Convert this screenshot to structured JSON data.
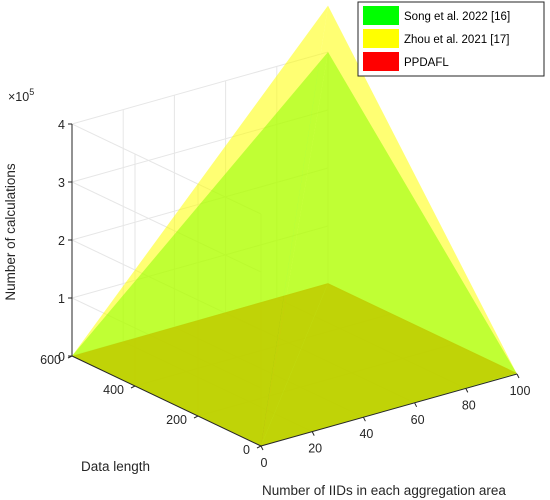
{
  "chart_data": {
    "type": "surface3d",
    "xlabel": "Number of IIDs in each aggregation area",
    "ylabel": "Data length",
    "zlabel": "Number of calculations",
    "z_exponent_base": "×10",
    "z_exponent_power": "5",
    "x_ticks": [
      "0",
      "20",
      "40",
      "60",
      "80",
      "100"
    ],
    "y_ticks": [
      "0",
      "200",
      "400",
      "600"
    ],
    "z_ticks": [
      "0",
      "1",
      "2",
      "3",
      "4"
    ],
    "xlim": [
      0,
      100
    ],
    "ylim": [
      0,
      600
    ],
    "zlim": [
      0,
      400000
    ],
    "grid": true,
    "legend_position": "top-right",
    "series": [
      {
        "name": "Song et al. 2022 [16]",
        "color": "#00ff00",
        "x": [
          0,
          100
        ],
        "y": [
          0,
          600
        ],
        "z": [
          [
            0,
            0
          ],
          [
            0,
            400000
          ]
        ]
      },
      {
        "name": "Zhou et al. 2021 [17]",
        "color": "#ffff00",
        "x": [
          0,
          100
        ],
        "y": [
          0,
          600
        ],
        "z": [
          [
            0,
            0
          ],
          [
            0,
            480000
          ]
        ]
      },
      {
        "name": "PPDAFL",
        "color": "#ff0000",
        "x": [
          0,
          100
        ],
        "y": [
          0,
          600
        ],
        "z": [
          [
            0,
            1500
          ],
          [
            0,
            1500
          ]
        ]
      }
    ]
  }
}
